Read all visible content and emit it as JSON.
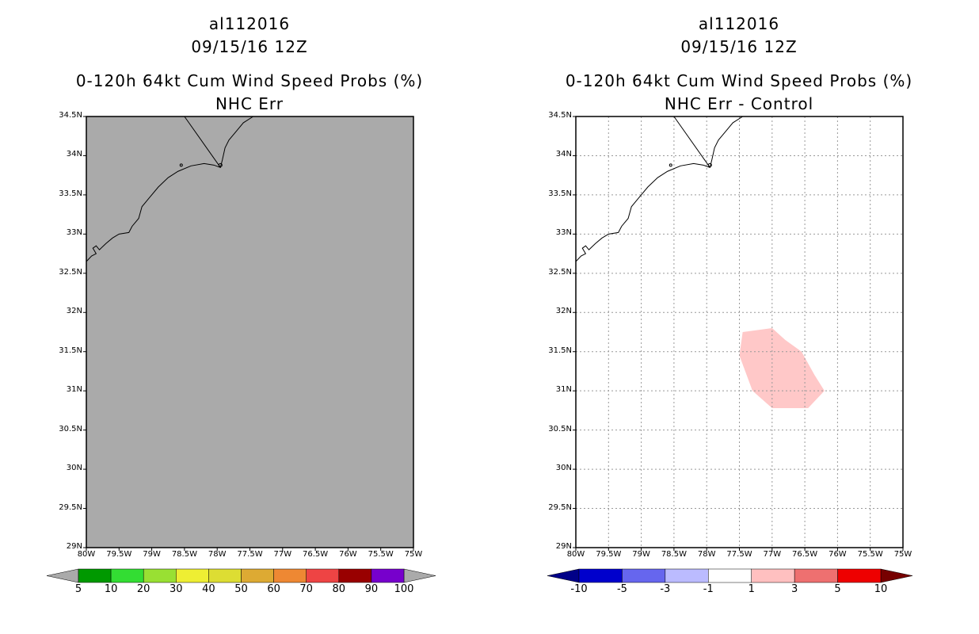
{
  "panels": [
    {
      "id": "left",
      "storm_id": "al112016",
      "datetime": "09/15/16 12Z",
      "product": "0-120h 64kt Cum Wind Speed Probs (%)",
      "subtitle": "NHC Err",
      "background": "#aaaaaa",
      "grid": false
    },
    {
      "id": "right",
      "storm_id": "al112016",
      "datetime": "09/15/16 12Z",
      "product": "0-120h 64kt Cum Wind Speed Probs (%)",
      "subtitle": "NHC Err - Control",
      "background": "#ffffff",
      "grid": true
    }
  ],
  "chart_data": [
    {
      "type": "heatmap",
      "title": "0-120h 64kt Cum Wind Speed Probs (%) NHC Err",
      "xlim": [
        -80,
        -75
      ],
      "ylim": [
        29,
        34.5
      ],
      "x_ticks": [
        "80W",
        "79.5W",
        "79W",
        "78.5W",
        "78W",
        "77.5W",
        "77W",
        "76.5W",
        "76W",
        "75.5W",
        "75W"
      ],
      "y_ticks": [
        "29N",
        "29.5N",
        "30N",
        "30.5N",
        "31N",
        "31.5N",
        "32N",
        "32.5N",
        "33N",
        "33.5N",
        "34N",
        "34.5N"
      ],
      "colorbar": {
        "labels": [
          "5",
          "10",
          "20",
          "30",
          "40",
          "50",
          "60",
          "70",
          "80",
          "90",
          "100"
        ],
        "colors": [
          "#009900",
          "#33dd33",
          "#99e033",
          "#eeee33",
          "#dddd33",
          "#ddaa33",
          "#ee8833",
          "#ee4444",
          "#990000",
          "#7700cc"
        ]
      },
      "fields": []
    },
    {
      "type": "heatmap",
      "title": "0-120h 64kt Cum Wind Speed Probs (%) NHC Err - Control",
      "xlim": [
        -80,
        -75
      ],
      "ylim": [
        29,
        34.5
      ],
      "x_ticks": [
        "80W",
        "79.5W",
        "79W",
        "78.5W",
        "78W",
        "77.5W",
        "77W",
        "76.5W",
        "76W",
        "75.5W",
        "75W"
      ],
      "y_ticks": [
        "29N",
        "29.5N",
        "30N",
        "30.5N",
        "31N",
        "31.5N",
        "32N",
        "32.5N",
        "33N",
        "33.5N",
        "34N",
        "34.5N"
      ],
      "colorbar": {
        "labels": [
          "-10",
          "-5",
          "-3",
          "-1",
          "1",
          "3",
          "5",
          "10"
        ],
        "colors": [
          "#0000cc",
          "#6666ee",
          "#bbbbff",
          "#ffffff",
          "#ffc0c0",
          "#ee7070",
          "#ee0000"
        ],
        "under_color": "#000088",
        "over_color": "#770000"
      },
      "fields": [
        {
          "category": "1 to 3",
          "color": "#ffc8c8",
          "polygon_lon": [
            -77.45,
            -77.0,
            -76.8,
            -76.55,
            -76.35,
            -76.2,
            -76.45,
            -77.0,
            -77.3,
            -77.5
          ],
          "polygon_lat": [
            31.75,
            31.8,
            31.65,
            31.5,
            31.2,
            31.0,
            30.78,
            30.78,
            31.0,
            31.45
          ]
        }
      ]
    }
  ]
}
